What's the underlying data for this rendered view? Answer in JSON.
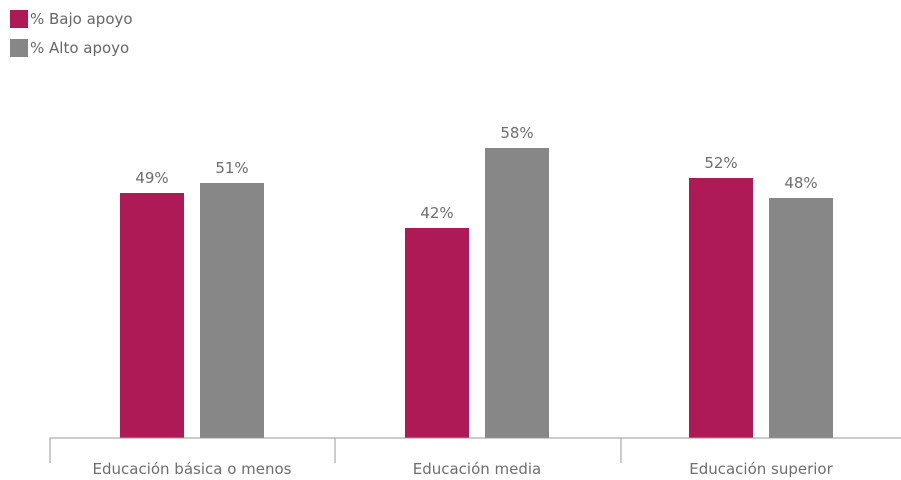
{
  "colors": {
    "bajo": "#ad1a55",
    "alto": "#878787",
    "axis": "#9a9a9a"
  },
  "chart_data": {
    "type": "bar",
    "categories": [
      "Educación básica o menos",
      "Educación media",
      "Educación superior"
    ],
    "series": [
      {
        "name": "% Bajo apoyo",
        "values": [
          49,
          42,
          52
        ],
        "labels": [
          "49%",
          "42%",
          "52%"
        ]
      },
      {
        "name": "% Alto apoyo",
        "values": [
          51,
          58,
          48
        ],
        "labels": [
          "51%",
          "58%",
          "48%"
        ]
      }
    ],
    "ylim": [
      0,
      100
    ],
    "grid": false,
    "legend_position": "top-left"
  }
}
